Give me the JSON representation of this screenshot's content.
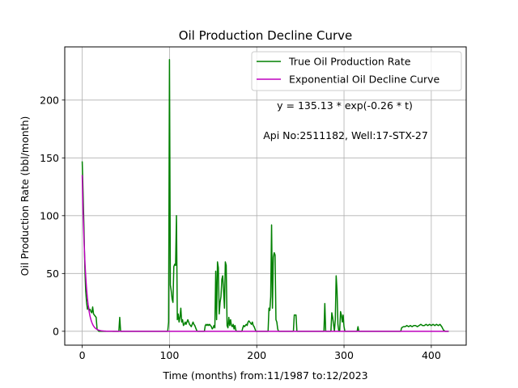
{
  "chart_data": {
    "type": "line",
    "title": "Oil Production Decline Curve",
    "xlabel": "Time (months) from:11/1987 to:12/2023",
    "ylabel": "Oil Production Rate (bbl/month)",
    "xlim": [
      -20,
      440
    ],
    "ylim": [
      -12,
      246
    ],
    "xticks": [
      0,
      100,
      200,
      300,
      400
    ],
    "yticks": [
      0,
      50,
      100,
      150,
      200
    ],
    "grid": true,
    "legend_position": "top-right",
    "annotations": [
      "y = 135.13 * exp(-0.26 * t)",
      "Api No:2511182, Well:17-STX-27"
    ],
    "series": [
      {
        "name": "True Oil Production Rate",
        "color": "#008000",
        "points": [
          [
            0,
            147
          ],
          [
            1,
            120
          ],
          [
            2,
            90
          ],
          [
            3,
            55
          ],
          [
            4,
            35
          ],
          [
            5,
            25
          ],
          [
            6,
            19
          ],
          [
            7,
            22
          ],
          [
            8,
            18
          ],
          [
            9,
            19
          ],
          [
            10,
            17
          ],
          [
            11,
            16
          ],
          [
            12,
            21
          ],
          [
            13,
            15
          ],
          [
            14,
            14
          ],
          [
            15,
            13
          ],
          [
            16,
            12
          ],
          [
            17,
            2
          ],
          [
            18,
            1
          ],
          [
            19,
            0
          ],
          [
            42,
            0
          ],
          [
            43,
            12
          ],
          [
            44,
            0
          ],
          [
            98,
            0
          ],
          [
            99,
            8
          ],
          [
            100,
            235
          ],
          [
            101,
            40
          ],
          [
            102,
            35
          ],
          [
            103,
            28
          ],
          [
            104,
            25
          ],
          [
            105,
            56
          ],
          [
            106,
            58
          ],
          [
            107,
            57
          ],
          [
            108,
            100
          ],
          [
            109,
            10
          ],
          [
            110,
            15
          ],
          [
            111,
            8
          ],
          [
            112,
            12
          ],
          [
            113,
            20
          ],
          [
            114,
            8
          ],
          [
            115,
            10
          ],
          [
            116,
            5
          ],
          [
            117,
            6
          ],
          [
            118,
            8
          ],
          [
            119,
            6
          ],
          [
            120,
            8
          ],
          [
            121,
            10
          ],
          [
            122,
            8
          ],
          [
            123,
            6
          ],
          [
            124,
            5
          ],
          [
            125,
            4
          ],
          [
            126,
            6
          ],
          [
            127,
            8
          ],
          [
            128,
            6
          ],
          [
            129,
            5
          ],
          [
            130,
            3
          ],
          [
            131,
            1
          ],
          [
            132,
            0
          ],
          [
            140,
            0
          ],
          [
            141,
            5
          ],
          [
            142,
            6
          ],
          [
            143,
            5
          ],
          [
            144,
            6
          ],
          [
            145,
            5
          ],
          [
            146,
            6
          ],
          [
            147,
            5
          ],
          [
            148,
            4
          ],
          [
            149,
            2
          ],
          [
            150,
            3
          ],
          [
            151,
            5
          ],
          [
            152,
            3
          ],
          [
            153,
            52
          ],
          [
            154,
            10
          ],
          [
            155,
            60
          ],
          [
            156,
            55
          ],
          [
            157,
            15
          ],
          [
            158,
            25
          ],
          [
            159,
            30
          ],
          [
            160,
            45
          ],
          [
            161,
            48
          ],
          [
            162,
            35
          ],
          [
            163,
            20
          ],
          [
            164,
            60
          ],
          [
            165,
            57
          ],
          [
            166,
            5
          ],
          [
            167,
            3
          ],
          [
            168,
            12
          ],
          [
            169,
            5
          ],
          [
            170,
            10
          ],
          [
            171,
            5
          ],
          [
            172,
            4
          ],
          [
            173,
            6
          ],
          [
            174,
            2
          ],
          [
            175,
            5
          ],
          [
            176,
            1
          ],
          [
            177,
            0
          ],
          [
            183,
            0
          ],
          [
            184,
            3
          ],
          [
            185,
            5
          ],
          [
            186,
            4
          ],
          [
            187,
            5
          ],
          [
            188,
            6
          ],
          [
            189,
            5
          ],
          [
            190,
            8
          ],
          [
            191,
            9
          ],
          [
            192,
            8
          ],
          [
            193,
            7
          ],
          [
            194,
            6
          ],
          [
            195,
            8
          ],
          [
            196,
            5
          ],
          [
            197,
            4
          ],
          [
            198,
            2
          ],
          [
            199,
            0
          ],
          [
            213,
            0
          ],
          [
            214,
            20
          ],
          [
            215,
            18
          ],
          [
            216,
            30
          ],
          [
            217,
            92
          ],
          [
            218,
            20
          ],
          [
            219,
            64
          ],
          [
            220,
            68
          ],
          [
            221,
            66
          ],
          [
            222,
            10
          ],
          [
            223,
            8
          ],
          [
            224,
            2
          ],
          [
            225,
            0
          ],
          [
            242,
            0
          ],
          [
            243,
            14
          ],
          [
            244,
            14
          ],
          [
            245,
            14
          ],
          [
            246,
            0
          ],
          [
            277,
            0
          ],
          [
            278,
            24
          ],
          [
            279,
            0
          ],
          [
            280,
            0
          ],
          [
            285,
            0
          ],
          [
            286,
            16
          ],
          [
            287,
            12
          ],
          [
            288,
            6
          ],
          [
            289,
            0
          ],
          [
            290,
            10
          ],
          [
            291,
            48
          ],
          [
            292,
            35
          ],
          [
            293,
            6
          ],
          [
            294,
            0
          ],
          [
            295,
            0
          ],
          [
            296,
            17
          ],
          [
            297,
            14
          ],
          [
            298,
            8
          ],
          [
            299,
            14
          ],
          [
            300,
            4
          ],
          [
            301,
            0
          ],
          [
            315,
            0
          ],
          [
            316,
            4
          ],
          [
            317,
            0
          ],
          [
            365,
            0
          ],
          [
            366,
            3
          ],
          [
            368,
            4
          ],
          [
            370,
            4
          ],
          [
            372,
            5
          ],
          [
            374,
            4
          ],
          [
            376,
            5
          ],
          [
            378,
            4
          ],
          [
            380,
            5
          ],
          [
            382,
            5
          ],
          [
            384,
            4
          ],
          [
            386,
            5
          ],
          [
            388,
            6
          ],
          [
            390,
            5
          ],
          [
            392,
            5
          ],
          [
            394,
            6
          ],
          [
            396,
            5
          ],
          [
            398,
            6
          ],
          [
            400,
            5
          ],
          [
            402,
            6
          ],
          [
            404,
            5
          ],
          [
            406,
            6
          ],
          [
            408,
            5
          ],
          [
            410,
            6
          ],
          [
            412,
            4
          ],
          [
            414,
            1
          ],
          [
            416,
            0
          ],
          [
            418,
            0
          ],
          [
            420,
            0
          ]
        ]
      },
      {
        "name": "Exponential Oil Decline Curve",
        "color": "#bf00bf",
        "equation": {
          "a": 135.13,
          "b": -0.26
        },
        "x_range": [
          0,
          420
        ]
      }
    ]
  }
}
